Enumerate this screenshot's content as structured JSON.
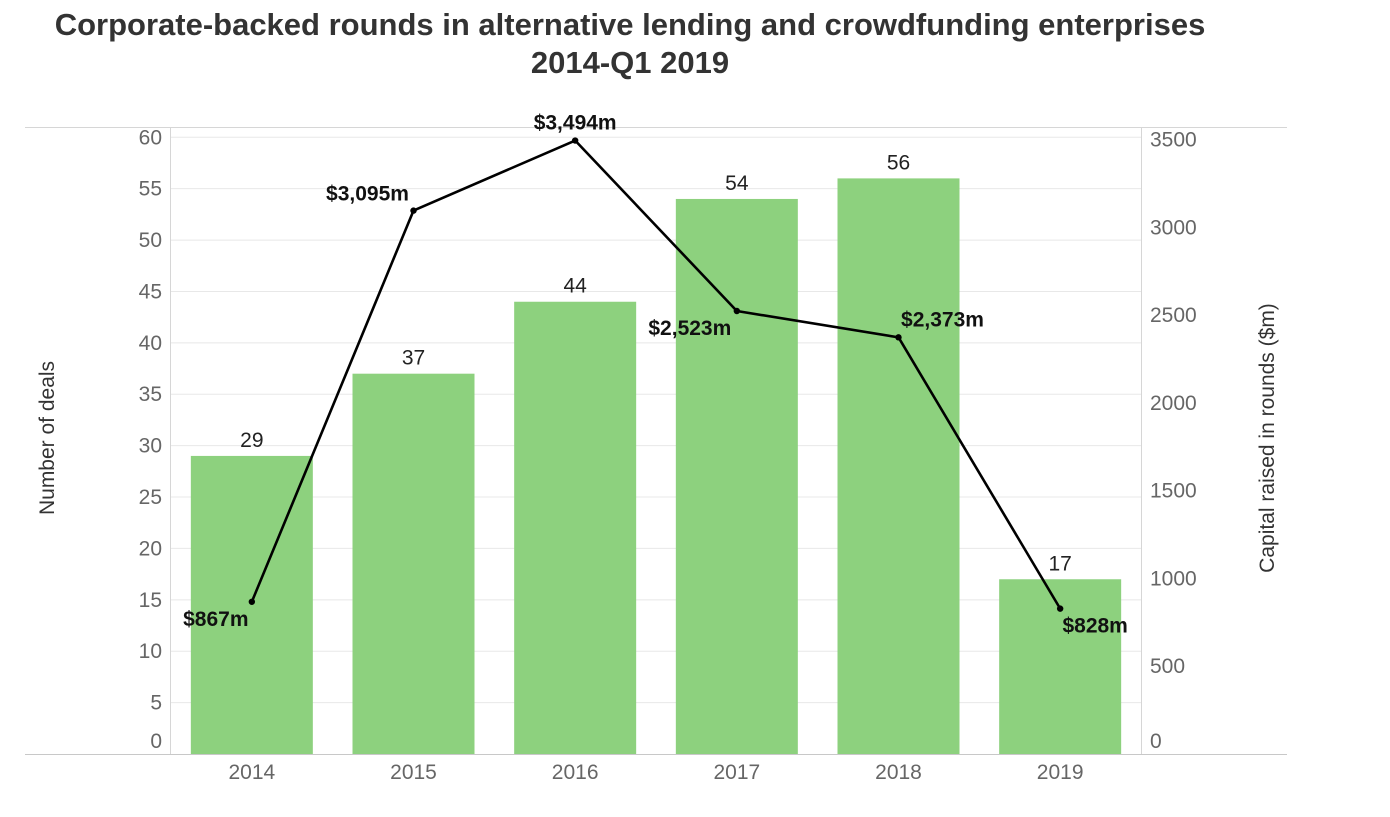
{
  "title_line1": "Corporate-backed rounds in alternative lending and crowdfunding enterprises",
  "title_line2": "2014-Q1 2019",
  "chart_data": {
    "type": "bar",
    "categories": [
      "2014",
      "2015",
      "2016",
      "2017",
      "2018",
      "2019"
    ],
    "series": [
      {
        "name": "Number of deals",
        "kind": "bar",
        "axis": "left",
        "values": [
          29,
          37,
          44,
          54,
          56,
          17
        ],
        "labels": [
          "29",
          "37",
          "44",
          "54",
          "56",
          "17"
        ]
      },
      {
        "name": "Capital raised in rounds ($m)",
        "kind": "line",
        "axis": "right",
        "values": [
          867,
          3095,
          3494,
          2523,
          2373,
          828
        ],
        "labels": [
          "$867m",
          "$3,095m",
          "$3,494m",
          "$2,523m",
          "$2,373m",
          "$828m"
        ]
      }
    ],
    "ylabel": "Number of deals",
    "y2label": "Capital raised in rounds ($m)",
    "ylim": [
      0,
      61
    ],
    "y2lim": [
      0,
      3571
    ],
    "yticks": [
      0,
      5,
      10,
      15,
      20,
      25,
      30,
      35,
      40,
      45,
      50,
      55,
      60
    ],
    "y2ticks": [
      0,
      500,
      1000,
      1500,
      2000,
      2500,
      3000,
      3500
    ],
    "grid": true,
    "colors": {
      "bar": "#8dd17e",
      "line": "#000000",
      "axis_text": "#666666",
      "grid": "#e8e8e8"
    }
  }
}
